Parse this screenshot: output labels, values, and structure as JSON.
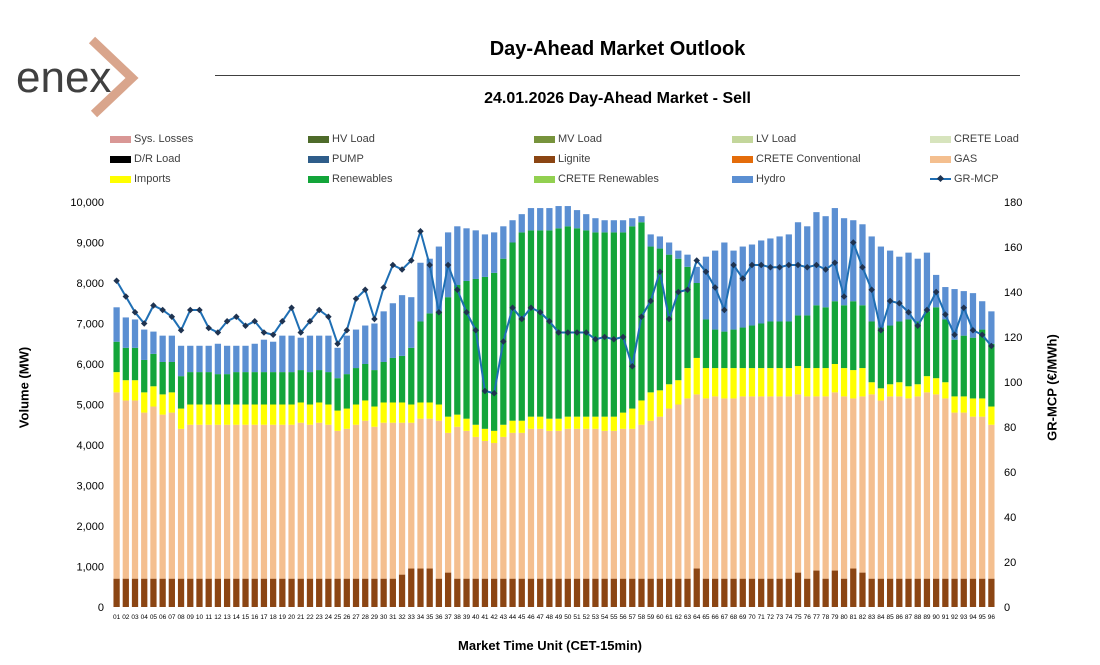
{
  "header": {
    "logo_text": "enex",
    "title": "Day-Ahead Market Outlook",
    "subtitle": "24.01.2026  Day-Ahead Market - Sell"
  },
  "colors": {
    "sys_losses": "#d99795",
    "hv_load": "#4e6b2a",
    "mv_load": "#77933c",
    "lv_load": "#c3d69b",
    "crete_load": "#d7e4bd",
    "dr_load": "#000000",
    "pump": "#2f5d8a",
    "lignite": "#8b4513",
    "crete_conventional": "#e46c0a",
    "gas": "#f4bf8f",
    "imports": "#ffff00",
    "renewables": "#13a53a",
    "crete_renewables": "#92d050",
    "hydro": "#5b8fd2",
    "gr_mcp": "#1f6fb4",
    "gr_mcp_marker": "#1f3350"
  },
  "chart_data": {
    "type": "bar",
    "stacked": true,
    "xlabel": "Market Time Unit (CET-15min)",
    "ylabel": "Volume (MW)",
    "y2label": "GR-MCP (€/MWh)",
    "ylim": [
      0,
      10000
    ],
    "y2lim": [
      0,
      180
    ],
    "yticks": [
      "0",
      "1,000",
      "2,000",
      "3,000",
      "4,000",
      "5,000",
      "6,000",
      "7,000",
      "8,000",
      "9,000",
      "10,000"
    ],
    "y2ticks": [
      "0",
      "20",
      "40",
      "60",
      "80",
      "100",
      "120",
      "140",
      "160",
      "180"
    ],
    "legend": [
      {
        "name": "Sys. Losses",
        "key": "sys_losses",
        "kind": "bar"
      },
      {
        "name": "HV Load",
        "key": "hv_load",
        "kind": "bar"
      },
      {
        "name": "MV Load",
        "key": "mv_load",
        "kind": "bar"
      },
      {
        "name": "LV Load",
        "key": "lv_load",
        "kind": "bar"
      },
      {
        "name": "CRETE Load",
        "key": "crete_load",
        "kind": "bar"
      },
      {
        "name": "D/R Load",
        "key": "dr_load",
        "kind": "bar"
      },
      {
        "name": "PUMP",
        "key": "pump",
        "kind": "bar"
      },
      {
        "name": "Lignite",
        "key": "lignite",
        "kind": "bar"
      },
      {
        "name": "CRETE Conventional",
        "key": "crete_conventional",
        "kind": "bar"
      },
      {
        "name": "GAS",
        "key": "gas",
        "kind": "bar"
      },
      {
        "name": "Imports",
        "key": "imports",
        "kind": "bar"
      },
      {
        "name": "Renewables",
        "key": "renewables",
        "kind": "bar"
      },
      {
        "name": "CRETE Renewables",
        "key": "crete_renewables",
        "kind": "bar"
      },
      {
        "name": "Hydro",
        "key": "hydro",
        "kind": "bar"
      },
      {
        "name": "GR-MCP",
        "key": "gr_mcp",
        "kind": "line"
      }
    ],
    "categories": [
      "01",
      "02",
      "03",
      "04",
      "05",
      "06",
      "07",
      "08",
      "09",
      "10",
      "11",
      "12",
      "13",
      "14",
      "15",
      "16",
      "17",
      "18",
      "19",
      "20",
      "21",
      "22",
      "23",
      "24",
      "25",
      "26",
      "27",
      "28",
      "29",
      "30",
      "31",
      "32",
      "33",
      "34",
      "35",
      "36",
      "37",
      "38",
      "39",
      "40",
      "41",
      "42",
      "43",
      "44",
      "45",
      "46",
      "47",
      "48",
      "49",
      "50",
      "51",
      "52",
      "53",
      "54",
      "55",
      "56",
      "57",
      "58",
      "59",
      "60",
      "61",
      "62",
      "63",
      "64",
      "65",
      "66",
      "67",
      "68",
      "69",
      "70",
      "71",
      "72",
      "73",
      "74",
      "75",
      "76",
      "77",
      "78",
      "79",
      "80",
      "81",
      "82",
      "83",
      "84",
      "85",
      "86",
      "87",
      "88",
      "89",
      "90",
      "91",
      "92",
      "93",
      "94",
      "95",
      "96"
    ],
    "stack_order": [
      "lignite",
      "gas",
      "imports",
      "renewables",
      "hydro"
    ],
    "series": [
      {
        "name": "Lignite",
        "key": "lignite",
        "values": [
          700,
          700,
          700,
          700,
          700,
          700,
          700,
          700,
          700,
          700,
          700,
          700,
          700,
          700,
          700,
          700,
          700,
          700,
          700,
          700,
          700,
          700,
          700,
          700,
          700,
          700,
          700,
          700,
          700,
          700,
          700,
          800,
          950,
          950,
          950,
          700,
          850,
          700,
          700,
          700,
          700,
          700,
          700,
          700,
          700,
          700,
          700,
          700,
          700,
          700,
          700,
          700,
          700,
          700,
          700,
          700,
          700,
          700,
          700,
          700,
          700,
          700,
          700,
          950,
          700,
          700,
          700,
          700,
          700,
          700,
          700,
          700,
          700,
          700,
          850,
          700,
          900,
          700,
          900,
          700,
          950,
          850,
          700,
          700,
          700,
          700,
          700,
          700,
          700,
          700,
          700,
          700,
          700,
          700,
          700,
          700
        ]
      },
      {
        "name": "GAS",
        "key": "gas",
        "values": [
          4600,
          4400,
          4400,
          4100,
          4250,
          4050,
          4100,
          3700,
          3800,
          3800,
          3800,
          3800,
          3800,
          3800,
          3800,
          3800,
          3800,
          3800,
          3800,
          3800,
          3850,
          3800,
          3850,
          3800,
          3650,
          3700,
          3800,
          3900,
          3750,
          3850,
          3850,
          3750,
          3600,
          3700,
          3700,
          3900,
          3450,
          3750,
          3650,
          3500,
          3400,
          3350,
          3500,
          3600,
          3600,
          3700,
          3700,
          3650,
          3650,
          3700,
          3700,
          3700,
          3700,
          3650,
          3650,
          3700,
          3700,
          3800,
          3900,
          4000,
          4200,
          4300,
          4450,
          4300,
          4450,
          4500,
          4450,
          4450,
          4500,
          4500,
          4500,
          4500,
          4500,
          4500,
          4400,
          4500,
          4300,
          4500,
          4400,
          4500,
          4200,
          4350,
          4550,
          4400,
          4500,
          4500,
          4450,
          4500,
          4600,
          4550,
          4450,
          4100,
          4100,
          4000,
          4000,
          3800
        ]
      },
      {
        "name": "Imports",
        "key": "imports",
        "values": [
          500,
          500,
          500,
          500,
          500,
          500,
          500,
          500,
          500,
          500,
          500,
          500,
          500,
          500,
          500,
          500,
          500,
          500,
          500,
          500,
          500,
          500,
          500,
          500,
          500,
          500,
          500,
          500,
          500,
          500,
          500,
          500,
          450,
          400,
          400,
          400,
          400,
          300,
          300,
          300,
          300,
          300,
          300,
          300,
          300,
          300,
          300,
          300,
          300,
          300,
          300,
          300,
          300,
          350,
          350,
          400,
          500,
          600,
          700,
          650,
          600,
          600,
          750,
          900,
          750,
          700,
          750,
          750,
          700,
          700,
          700,
          700,
          700,
          700,
          700,
          700,
          700,
          700,
          700,
          700,
          700,
          700,
          300,
          300,
          300,
          350,
          300,
          300,
          400,
          400,
          400,
          400,
          400,
          450,
          450,
          450
        ]
      },
      {
        "name": "Renewables",
        "key": "renewables",
        "values": [
          750,
          800,
          800,
          800,
          800,
          800,
          750,
          800,
          800,
          800,
          800,
          750,
          750,
          800,
          800,
          800,
          800,
          800,
          800,
          800,
          800,
          800,
          800,
          800,
          800,
          850,
          900,
          900,
          900,
          1000,
          1100,
          1150,
          1400,
          2000,
          2200,
          2300,
          2950,
          3200,
          3400,
          3600,
          3750,
          3900,
          4100,
          4400,
          4650,
          4600,
          4600,
          4650,
          4700,
          4700,
          4650,
          4600,
          4550,
          4550,
          4550,
          4450,
          4500,
          4400,
          3600,
          3500,
          3200,
          3000,
          2500,
          1850,
          1200,
          950,
          900,
          950,
          1000,
          1050,
          1100,
          1150,
          1150,
          1150,
          1250,
          1300,
          1550,
          1500,
          1550,
          1550,
          1700,
          1550,
          1500,
          1500,
          1450,
          1500,
          1650,
          1550,
          1600,
          1750,
          1550,
          1400,
          1500,
          1500,
          1700,
          1550
        ]
      },
      {
        "name": "Hydro",
        "key": "hydro",
        "values": [
          850,
          750,
          700,
          750,
          550,
          650,
          650,
          750,
          650,
          650,
          650,
          750,
          700,
          650,
          650,
          700,
          800,
          750,
          900,
          900,
          800,
          900,
          850,
          900,
          750,
          950,
          950,
          950,
          1150,
          1250,
          1350,
          1500,
          1250,
          1450,
          1350,
          1600,
          1600,
          1450,
          1300,
          1200,
          1050,
          1000,
          800,
          550,
          450,
          550,
          550,
          550,
          550,
          500,
          450,
          400,
          350,
          300,
          300,
          300,
          200,
          150,
          300,
          300,
          300,
          200,
          300,
          400,
          1550,
          1950,
          2200,
          1950,
          2000,
          2000,
          2050,
          2050,
          2100,
          2150,
          2300,
          2200,
          2300,
          2250,
          2300,
          2150,
          2000,
          2000,
          2100,
          2000,
          1850,
          1600,
          1650,
          1550,
          1450,
          800,
          800,
          1250,
          1100,
          1100,
          700,
          800
        ]
      },
      {
        "name": "GR-MCP",
        "key": "gr_mcp",
        "axis": "y2",
        "values": [
          145,
          138,
          131,
          126,
          134,
          132,
          129,
          123,
          132,
          132,
          124,
          122,
          127,
          129,
          125,
          127,
          122,
          121,
          127,
          133,
          122,
          127,
          132,
          129,
          117,
          123,
          137,
          141,
          128,
          142,
          152,
          150,
          154,
          167,
          152,
          131,
          152,
          141,
          131,
          123,
          96,
          95,
          118,
          133,
          128,
          133,
          131,
          127,
          122,
          122,
          122,
          122,
          119,
          120,
          119,
          120,
          107,
          129,
          136,
          149,
          128,
          140,
          141,
          154,
          149,
          142,
          132,
          152,
          146,
          152,
          152,
          151,
          151,
          152,
          152,
          151,
          152,
          150,
          153,
          138,
          162,
          151,
          141,
          123,
          136,
          135,
          131,
          125,
          132,
          140,
          130,
          121,
          133,
          123,
          121,
          116
        ]
      }
    ]
  }
}
